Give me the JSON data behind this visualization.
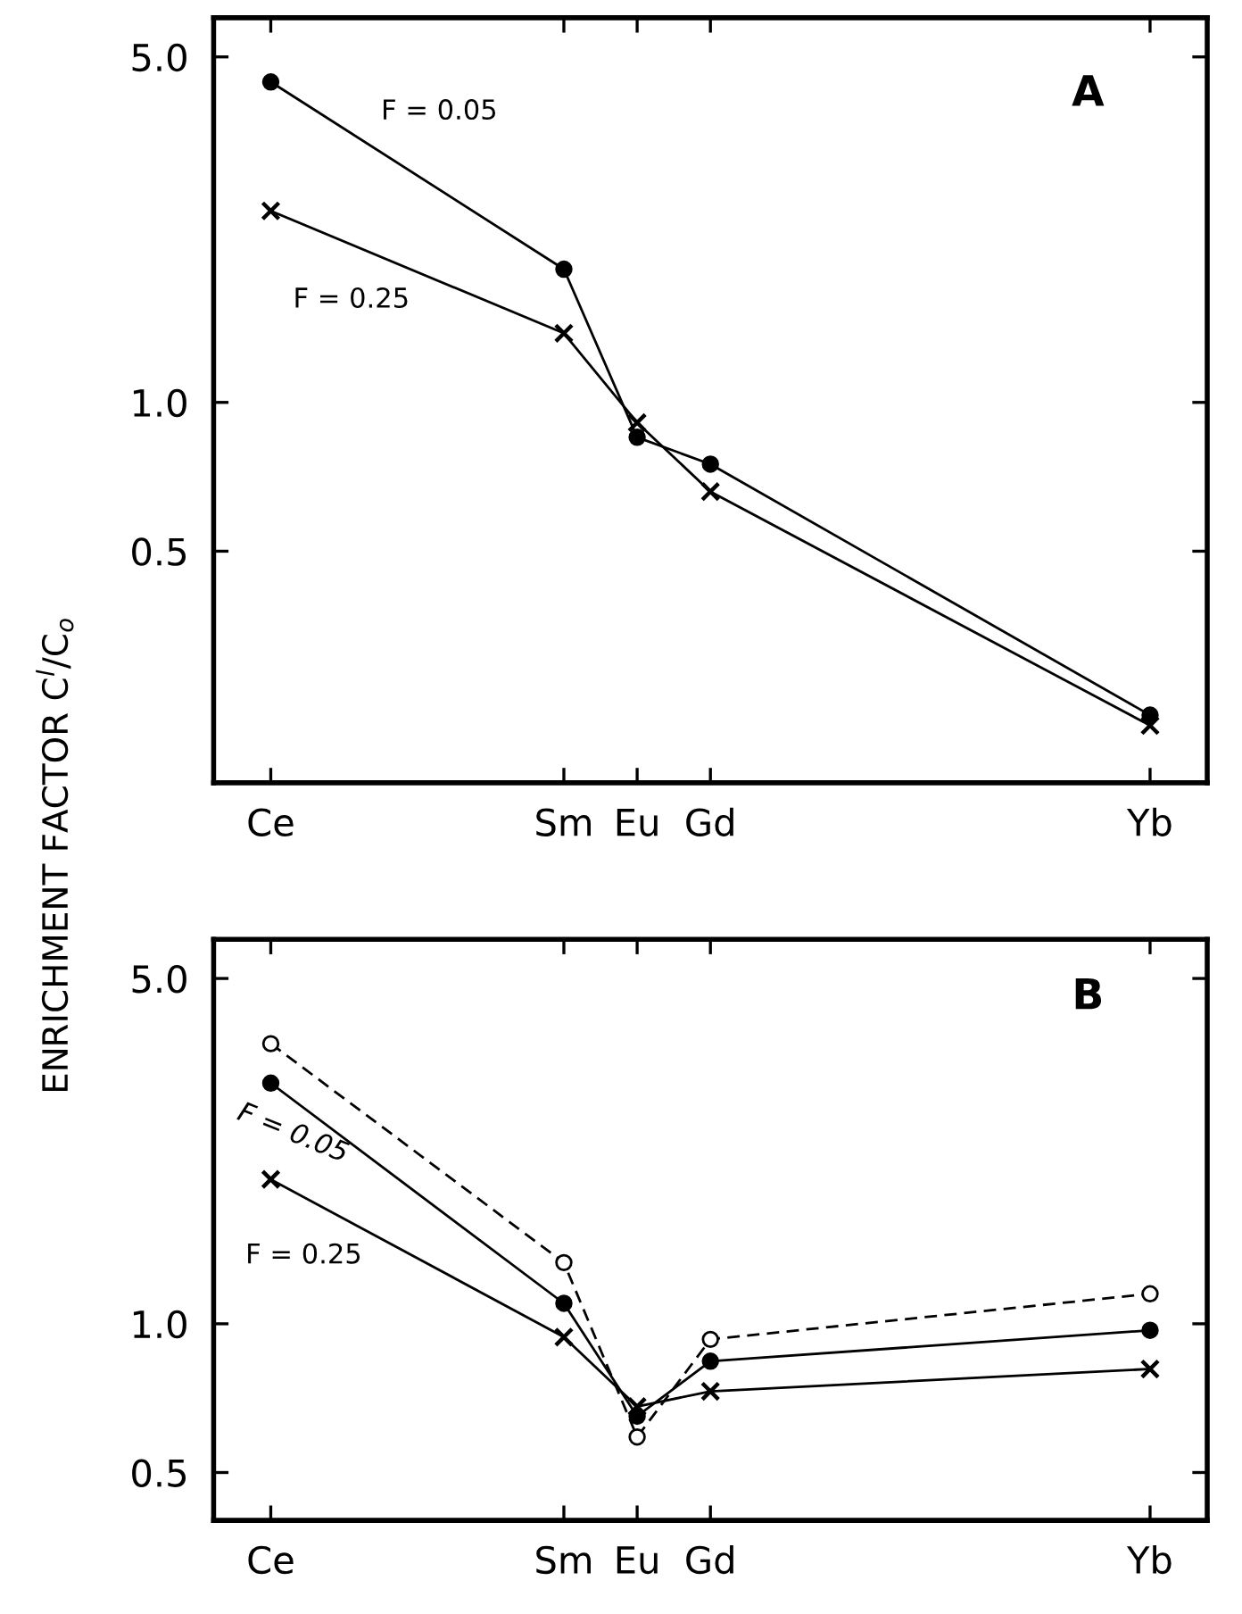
{
  "chart_data": [
    {
      "type": "line",
      "ylabel": "ENRICHMENT FACTOR C$^{l}$/C$_{o}$",
      "categories": [
        "Ce",
        null,
        null,
        null,
        "Sm",
        "Eu",
        "Gd",
        null,
        null,
        null,
        null,
        null,
        "Yb"
      ],
      "log": "y",
      "ylim": [
        0.17,
        6.0
      ],
      "yticks": [
        {
          "value": 0.5,
          "label": "0.5"
        },
        {
          "value": 1,
          "label": "1.0"
        },
        {
          "value": 5,
          "label": "5.0"
        }
      ],
      "grid": false,
      "legend": false,
      "series": [
        {
          "name": "F = 0.05",
          "color": "#000000",
          "marker": "circle",
          "line_style": "solid",
          "values": [
            4.45,
            null,
            null,
            null,
            1.86,
            0.85,
            0.75,
            null,
            null,
            null,
            null,
            null,
            0.233
          ]
        },
        {
          "name": "F = 0.25",
          "color": "#000000",
          "marker": "cross",
          "line_style": "solid",
          "values": [
            2.44,
            null,
            null,
            null,
            1.38,
            0.91,
            0.66,
            null,
            null,
            null,
            null,
            null,
            0.222
          ]
        }
      ],
      "annotations": [
        "A"
      ]
    },
    {
      "type": "line",
      "categories": [
        "Ce",
        null,
        null,
        null,
        "Sm",
        "Eu",
        "Gd",
        null,
        null,
        null,
        null,
        null,
        "Yb"
      ],
      "log": "y",
      "ylim": [
        0.4,
        6.0
      ],
      "yticks": [
        {
          "value": 0.5,
          "label": "0.5"
        },
        {
          "value": 1,
          "label": "1.0"
        },
        {
          "value": 5,
          "label": "5.0"
        }
      ],
      "grid": false,
      "legend": false,
      "series": [
        {
          "color": "#000000",
          "marker": "circle_open",
          "line_style": "dashed",
          "values": [
            3.69,
            null,
            null,
            null,
            1.33,
            0.59,
            0.93,
            null,
            null,
            null,
            null,
            null,
            1.15
          ]
        },
        {
          "name": "F = 0.05",
          "color": "#000000",
          "marker": "circle",
          "line_style": "solid",
          "values": [
            3.07,
            null,
            null,
            null,
            1.1,
            0.65,
            0.84,
            null,
            null,
            null,
            null,
            null,
            0.97
          ]
        },
        {
          "name": "F = 0.25",
          "color": "#000000",
          "marker": "cross",
          "line_style": "solid",
          "values": [
            1.96,
            null,
            null,
            null,
            0.94,
            0.68,
            0.73,
            null,
            null,
            null,
            null,
            null,
            0.81
          ]
        }
      ],
      "annotations": [
        "B"
      ]
    }
  ]
}
